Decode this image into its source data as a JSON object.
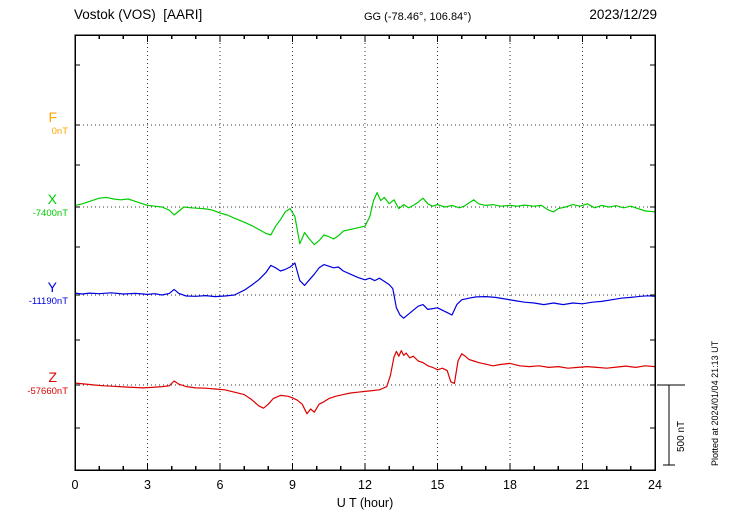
{
  "header": {
    "station": "Vostok (VOS)  [AARI]",
    "coordinates": "GG (-78.46°, 106.84°)",
    "date": "2023/12/29"
  },
  "axis": {
    "xlabel": "U T (hour)",
    "xticks": [
      0,
      3,
      6,
      9,
      12,
      15,
      18,
      21,
      24
    ],
    "xmin": 0,
    "xmax": 24
  },
  "scale_bar": {
    "label": "500 nT",
    "value_nT": 500
  },
  "side_note": "Plotted at 2024/01/04 21:13 UT",
  "components": [
    {
      "id": "F",
      "label": "F",
      "baseline_label": "0nT",
      "color": "#ffa500"
    },
    {
      "id": "X",
      "label": "X",
      "baseline_label": "-7400nT",
      "color": "#00cc00"
    },
    {
      "id": "Y",
      "label": "Y",
      "baseline_label": "-11190nT",
      "color": "#0000dd"
    },
    {
      "id": "Z",
      "label": "Z",
      "baseline_label": "-57660nT",
      "color": "#dd0000"
    }
  ],
  "chart_data": {
    "type": "line",
    "title": "Vostok (VOS) [AARI] magnetogram 2023/12/29",
    "xlabel": "U T (hour)",
    "xlim": [
      0,
      24
    ],
    "y_units": "nT deviation from component baseline",
    "scale_reference_nT": 500,
    "grid": "dotted vertical lines every 3 h, dotted horizontal line at each component baseline",
    "series": [
      {
        "id": "F",
        "name": "F",
        "baseline_nT": 0,
        "color": "#ffa500",
        "note": "flat - no visible deviation from baseline",
        "points": []
      },
      {
        "id": "X",
        "name": "X",
        "baseline_nT": -7400,
        "color": "#00cc00",
        "points": [
          [
            0,
            10
          ],
          [
            0.3,
            20
          ],
          [
            0.6,
            35
          ],
          [
            1,
            55
          ],
          [
            1.3,
            60
          ],
          [
            1.6,
            50
          ],
          [
            1.9,
            45
          ],
          [
            2.2,
            50
          ],
          [
            2.5,
            35
          ],
          [
            2.8,
            20
          ],
          [
            3,
            10
          ],
          [
            3.3,
            5
          ],
          [
            3.6,
            0
          ],
          [
            3.9,
            -20
          ],
          [
            4.1,
            -50
          ],
          [
            4.3,
            -25
          ],
          [
            4.5,
            0
          ],
          [
            4.8,
            -5
          ],
          [
            5.1,
            -8
          ],
          [
            5.4,
            -12
          ],
          [
            5.7,
            -20
          ],
          [
            6,
            -38
          ],
          [
            6.3,
            -50
          ],
          [
            6.6,
            -70
          ],
          [
            7,
            -95
          ],
          [
            7.3,
            -115
          ],
          [
            7.6,
            -140
          ],
          [
            7.9,
            -165
          ],
          [
            8.1,
            -175
          ],
          [
            8.3,
            -120
          ],
          [
            8.5,
            -80
          ],
          [
            8.7,
            -30
          ],
          [
            8.9,
            -10
          ],
          [
            9.1,
            -60
          ],
          [
            9.3,
            -230
          ],
          [
            9.5,
            -160
          ],
          [
            9.7,
            -200
          ],
          [
            9.9,
            -235
          ],
          [
            10.1,
            -210
          ],
          [
            10.3,
            -175
          ],
          [
            10.5,
            -185
          ],
          [
            10.7,
            -200
          ],
          [
            10.9,
            -180
          ],
          [
            11.1,
            -150
          ],
          [
            11.4,
            -140
          ],
          [
            11.7,
            -130
          ],
          [
            12,
            -120
          ],
          [
            12.2,
            -60
          ],
          [
            12.35,
            40
          ],
          [
            12.5,
            90
          ],
          [
            12.65,
            40
          ],
          [
            12.8,
            60
          ],
          [
            13,
            20
          ],
          [
            13.2,
            45
          ],
          [
            13.4,
            -10
          ],
          [
            13.6,
            15
          ],
          [
            13.8,
            -5
          ],
          [
            14,
            10
          ],
          [
            14.2,
            30
          ],
          [
            14.4,
            55
          ],
          [
            14.6,
            20
          ],
          [
            14.8,
            5
          ],
          [
            15,
            15
          ],
          [
            15.3,
            0
          ],
          [
            15.6,
            10
          ],
          [
            15.9,
            -5
          ],
          [
            16.1,
            5
          ],
          [
            16.3,
            25
          ],
          [
            16.5,
            45
          ],
          [
            16.7,
            20
          ],
          [
            17,
            10
          ],
          [
            17.3,
            15
          ],
          [
            17.6,
            5
          ],
          [
            18,
            10
          ],
          [
            18.3,
            5
          ],
          [
            18.6,
            12
          ],
          [
            19,
            5
          ],
          [
            19.3,
            10
          ],
          [
            19.6,
            -20
          ],
          [
            19.8,
            -30
          ],
          [
            20,
            -10
          ],
          [
            20.3,
            0
          ],
          [
            20.6,
            15
          ],
          [
            20.9,
            5
          ],
          [
            21.2,
            20
          ],
          [
            21.5,
            -5
          ],
          [
            21.8,
            10
          ],
          [
            22.1,
            0
          ],
          [
            22.4,
            8
          ],
          [
            22.7,
            -5
          ],
          [
            23,
            5
          ],
          [
            23.3,
            -10
          ],
          [
            23.6,
            -25
          ],
          [
            24,
            -30
          ]
        ]
      },
      {
        "id": "Y",
        "name": "Y",
        "baseline_nT": -11190,
        "color": "#0000dd",
        "points": [
          [
            0,
            12
          ],
          [
            0.3,
            6
          ],
          [
            0.6,
            12
          ],
          [
            1,
            8
          ],
          [
            1.5,
            14
          ],
          [
            2,
            6
          ],
          [
            2.5,
            10
          ],
          [
            3,
            4
          ],
          [
            3.3,
            8
          ],
          [
            3.6,
            0
          ],
          [
            3.9,
            10
          ],
          [
            4.1,
            35
          ],
          [
            4.3,
            10
          ],
          [
            4.6,
            -6
          ],
          [
            5,
            -8
          ],
          [
            5.4,
            -4
          ],
          [
            5.8,
            -10
          ],
          [
            6.2,
            -6
          ],
          [
            6.6,
            0
          ],
          [
            7,
            30
          ],
          [
            7.3,
            60
          ],
          [
            7.6,
            95
          ],
          [
            7.9,
            140
          ],
          [
            8.1,
            185
          ],
          [
            8.3,
            170
          ],
          [
            8.5,
            150
          ],
          [
            8.7,
            160
          ],
          [
            8.9,
            175
          ],
          [
            9.1,
            200
          ],
          [
            9.3,
            90
          ],
          [
            9.5,
            60
          ],
          [
            9.7,
            95
          ],
          [
            9.9,
            130
          ],
          [
            10.1,
            170
          ],
          [
            10.3,
            190
          ],
          [
            10.5,
            180
          ],
          [
            10.7,
            170
          ],
          [
            10.9,
            175
          ],
          [
            11.1,
            150
          ],
          [
            11.4,
            130
          ],
          [
            11.7,
            110
          ],
          [
            12,
            95
          ],
          [
            12.2,
            105
          ],
          [
            12.4,
            90
          ],
          [
            12.6,
            105
          ],
          [
            12.8,
            85
          ],
          [
            13,
            65
          ],
          [
            13.15,
            40
          ],
          [
            13.3,
            -80
          ],
          [
            13.45,
            -125
          ],
          [
            13.6,
            -145
          ],
          [
            13.8,
            -120
          ],
          [
            14,
            -95
          ],
          [
            14.2,
            -70
          ],
          [
            14.4,
            -60
          ],
          [
            14.6,
            -90
          ],
          [
            14.8,
            -85
          ],
          [
            15,
            -80
          ],
          [
            15.2,
            -95
          ],
          [
            15.4,
            -110
          ],
          [
            15.6,
            -125
          ],
          [
            15.8,
            -60
          ],
          [
            16,
            -30
          ],
          [
            16.3,
            -20
          ],
          [
            16.6,
            -12
          ],
          [
            17,
            -10
          ],
          [
            17.4,
            -15
          ],
          [
            17.8,
            -25
          ],
          [
            18.2,
            -35
          ],
          [
            18.6,
            -45
          ],
          [
            19,
            -50
          ],
          [
            19.4,
            -60
          ],
          [
            19.8,
            -50
          ],
          [
            20.2,
            -60
          ],
          [
            20.6,
            -50
          ],
          [
            21,
            -55
          ],
          [
            21.4,
            -45
          ],
          [
            21.8,
            -40
          ],
          [
            22.2,
            -30
          ],
          [
            22.6,
            -20
          ],
          [
            23,
            -15
          ],
          [
            23.4,
            -8
          ],
          [
            23.7,
            -5
          ],
          [
            24,
            -8
          ]
        ]
      },
      {
        "id": "Z",
        "name": "Z",
        "baseline_nT": -57660,
        "color": "#dd0000",
        "points": [
          [
            0,
            12
          ],
          [
            0.4,
            6
          ],
          [
            0.8,
            0
          ],
          [
            1.2,
            -5
          ],
          [
            1.6,
            -8
          ],
          [
            2,
            -12
          ],
          [
            2.4,
            -15
          ],
          [
            2.8,
            -18
          ],
          [
            3.2,
            -15
          ],
          [
            3.6,
            -10
          ],
          [
            3.9,
            -5
          ],
          [
            4.1,
            25
          ],
          [
            4.3,
            5
          ],
          [
            4.6,
            -10
          ],
          [
            5,
            -18
          ],
          [
            5.4,
            -20
          ],
          [
            5.8,
            -25
          ],
          [
            6.2,
            -30
          ],
          [
            6.6,
            -45
          ],
          [
            7,
            -60
          ],
          [
            7.3,
            -90
          ],
          [
            7.6,
            -130
          ],
          [
            7.8,
            -145
          ],
          [
            8,
            -120
          ],
          [
            8.2,
            -85
          ],
          [
            8.5,
            -65
          ],
          [
            8.8,
            -70
          ],
          [
            9,
            -80
          ],
          [
            9.2,
            -95
          ],
          [
            9.4,
            -120
          ],
          [
            9.6,
            -180
          ],
          [
            9.75,
            -150
          ],
          [
            9.9,
            -170
          ],
          [
            10.1,
            -120
          ],
          [
            10.3,
            -105
          ],
          [
            10.5,
            -85
          ],
          [
            10.8,
            -70
          ],
          [
            11.1,
            -60
          ],
          [
            11.4,
            -50
          ],
          [
            11.7,
            -45
          ],
          [
            12,
            -40
          ],
          [
            12.3,
            -35
          ],
          [
            12.6,
            -30
          ],
          [
            12.9,
            -10
          ],
          [
            13.05,
            60
          ],
          [
            13.2,
            175
          ],
          [
            13.3,
            210
          ],
          [
            13.4,
            180
          ],
          [
            13.5,
            215
          ],
          [
            13.6,
            185
          ],
          [
            13.7,
            200
          ],
          [
            13.85,
            170
          ],
          [
            14,
            180
          ],
          [
            14.2,
            150
          ],
          [
            14.4,
            140
          ],
          [
            14.6,
            120
          ],
          [
            14.8,
            110
          ],
          [
            15,
            95
          ],
          [
            15.2,
            105
          ],
          [
            15.4,
            90
          ],
          [
            15.55,
            20
          ],
          [
            15.7,
            10
          ],
          [
            15.85,
            150
          ],
          [
            16,
            195
          ],
          [
            16.15,
            180
          ],
          [
            16.3,
            160
          ],
          [
            16.5,
            150
          ],
          [
            16.7,
            140
          ],
          [
            17,
            130
          ],
          [
            17.3,
            120
          ],
          [
            17.6,
            128
          ],
          [
            18,
            135
          ],
          [
            18.4,
            120
          ],
          [
            18.8,
            115
          ],
          [
            19.2,
            120
          ],
          [
            19.6,
            110
          ],
          [
            20,
            115
          ],
          [
            20.4,
            105
          ],
          [
            20.8,
            110
          ],
          [
            21.2,
            115
          ],
          [
            21.6,
            110
          ],
          [
            22,
            105
          ],
          [
            22.4,
            112
          ],
          [
            22.8,
            118
          ],
          [
            23.2,
            110
          ],
          [
            23.6,
            120
          ],
          [
            24,
            115
          ]
        ]
      }
    ]
  }
}
